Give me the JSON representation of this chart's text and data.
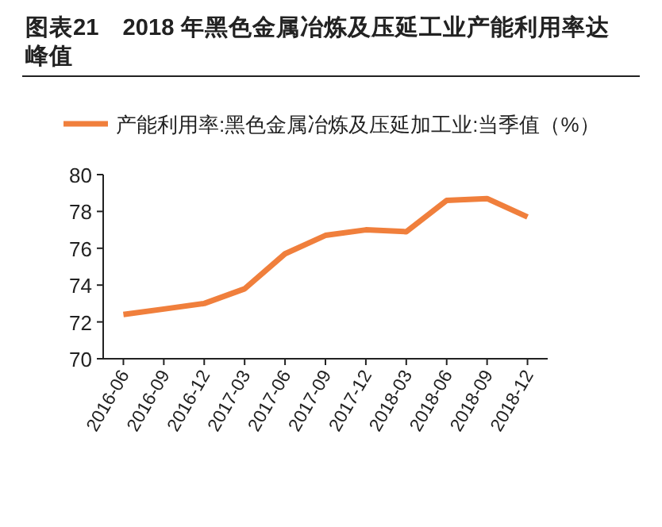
{
  "chart_data": {
    "type": "line",
    "title": "图表21　2018 年黑色金属冶炼及压延工业产能利用率达峰值",
    "categories": [
      "2016-06",
      "2016-09",
      "2016-12",
      "2017-03",
      "2017-06",
      "2017-09",
      "2017-12",
      "2018-03",
      "2018-06",
      "2018-09",
      "2018-12"
    ],
    "series": [
      {
        "name": "产能利用率:黑色金属冶炼及压延加工业:当季值（%）",
        "color": "#f07f3c",
        "values": [
          72.4,
          72.7,
          73.0,
          73.8,
          75.7,
          76.7,
          77.0,
          76.9,
          78.6,
          78.7,
          77.7
        ]
      }
    ],
    "ylim": [
      70,
      80
    ],
    "yticks": [
      70,
      72,
      74,
      76,
      78,
      80
    ],
    "legend": "top",
    "grid": false,
    "marker": "none",
    "line_style": "solid"
  }
}
